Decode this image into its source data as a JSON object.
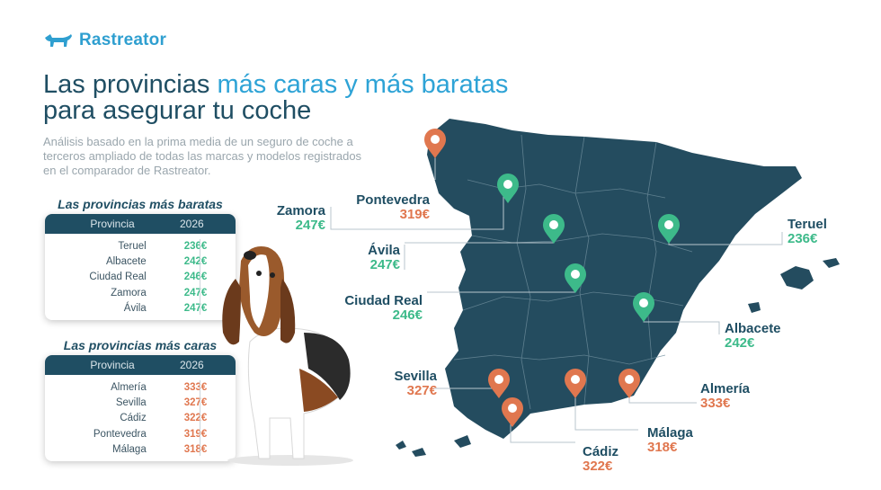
{
  "brand": {
    "name": "Rastreator",
    "icon": "dog-logo-icon",
    "color": "#2f9fd0"
  },
  "title": {
    "part1": "Las provincias ",
    "highlight": "más caras y más baratas",
    "line2": "para asegurar tu coche"
  },
  "subtitle": "Análisis basado en la prima media de un seguro de coche a terceros ampliado de todas las marcas y modelos registrados en el comparador de Rastreator.",
  "cheapest": {
    "heading": "Las provincias más baratas",
    "col_province": "Provincia",
    "col_year": "2026",
    "rows": [
      {
        "province": "Teruel",
        "price": "236€"
      },
      {
        "province": "Albacete",
        "price": "242€"
      },
      {
        "province": "Ciudad Real",
        "price": "246€"
      },
      {
        "province": "Zamora",
        "price": "247€"
      },
      {
        "province": "Ávila",
        "price": "247€"
      }
    ]
  },
  "expensive": {
    "heading": "Las provincias más caras",
    "col_province": "Provincia",
    "col_year": "2026",
    "rows": [
      {
        "province": "Almería",
        "price": "333€"
      },
      {
        "province": "Sevilla",
        "price": "327€"
      },
      {
        "province": "Cádiz",
        "price": "322€"
      },
      {
        "province": "Pontevedra",
        "price": "319€"
      },
      {
        "province": "Málaga",
        "price": "318€"
      }
    ]
  },
  "map_labels": {
    "zamora": {
      "name": "Zamora",
      "price": "247€"
    },
    "pontevedra": {
      "name": "Pontevedra",
      "price": "319€"
    },
    "avila": {
      "name": "Ávila",
      "price": "247€"
    },
    "ciudad_real": {
      "name": "Ciudad Real",
      "price": "246€"
    },
    "teruel": {
      "name": "Teruel",
      "price": "236€"
    },
    "albacete": {
      "name": "Albacete",
      "price": "242€"
    },
    "sevilla": {
      "name": "Sevilla",
      "price": "327€"
    },
    "almeria": {
      "name": "Almería",
      "price": "333€"
    },
    "malaga": {
      "name": "Málaga",
      "price": "318€"
    },
    "cadiz": {
      "name": "Cádiz",
      "price": "322€"
    }
  },
  "colors": {
    "map": "#244c5f",
    "cheap": "#3dba8a",
    "expensive": "#e0774f",
    "title": "#1f4e63",
    "highlight": "#2ea3d6"
  }
}
